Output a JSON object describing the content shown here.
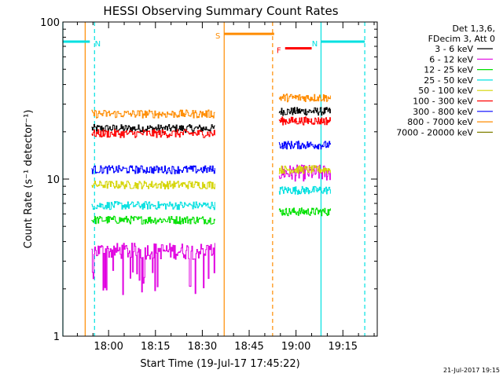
{
  "chart_data": {
    "type": "line",
    "title": "HESSI Observing Summary Count Rates",
    "xlabel": "Start Time (19-Jul-17 17:45:22)",
    "ylabel": "Count Rate (s⁻¹ detector⁻¹)",
    "yscale": "log",
    "ylim": [
      1,
      100
    ],
    "xlim": [
      "17:45:22",
      "19:26:00"
    ],
    "x_ticks": [
      "18:00",
      "18:15",
      "18:30",
      "18:45",
      "19:00",
      "19:15"
    ],
    "y_ticks": [
      "1",
      "10",
      "100"
    ],
    "grid": false,
    "legend_header": [
      "Det 1,3,6,",
      "FDecim 3, Att 0"
    ],
    "legend_position": "right",
    "segments": [
      {
        "start": "17:54:30",
        "end": "18:34:00"
      },
      {
        "start": "18:54:30",
        "end": "19:11:00"
      }
    ],
    "series": [
      {
        "name": "3 - 6 keV",
        "color": "#000000",
        "values": [
          21,
          27
        ]
      },
      {
        "name": "6 - 12 keV",
        "color": "#e000e0",
        "values": [
          3.5,
          11
        ]
      },
      {
        "name": "12 - 25 keV",
        "color": "#00e000",
        "values": [
          5.5,
          6.2
        ]
      },
      {
        "name": "25 - 50 keV",
        "color": "#00e0e0",
        "values": [
          6.8,
          8.5
        ]
      },
      {
        "name": "50 - 100 keV",
        "color": "#d4d400",
        "values": [
          9.2,
          11.5
        ]
      },
      {
        "name": "100 - 300 keV",
        "color": "#ff0000",
        "values": [
          19.5,
          23.5
        ]
      },
      {
        "name": "300 - 800 keV",
        "color": "#0000ff",
        "values": [
          11.5,
          16.5
        ]
      },
      {
        "name": "800 - 7000 keV",
        "color": "#ff8c00",
        "values": [
          26,
          33
        ]
      },
      {
        "name": "7000 - 20000 keV",
        "color": "#808000",
        "values": [
          null,
          null
        ]
      }
    ],
    "flags": [
      {
        "label": "N",
        "color": "#00e0e0",
        "start": "17:45:22",
        "end": "17:54:00",
        "level": 75
      },
      {
        "label": "N",
        "color": "#00e0e0",
        "start": "19:08:00",
        "end": "19:22:00",
        "level": 75
      },
      {
        "label": "S",
        "color": "#ff8c00",
        "start": "18:37:00",
        "end": "18:53:00",
        "level": 84
      },
      {
        "label": "F",
        "color": "#ff0000",
        "start": "18:56:30",
        "end": "19:05:00",
        "level": 68
      }
    ],
    "vertical_lines": [
      {
        "time": "17:45:22",
        "color": "#00e0e0",
        "style": "solid"
      },
      {
        "time": "17:52:30",
        "color": "#ff8c00",
        "style": "solid"
      },
      {
        "time": "17:55:30",
        "color": "#00e0e0",
        "style": "dashed"
      },
      {
        "time": "18:37:00",
        "color": "#ff8c00",
        "style": "solid"
      },
      {
        "time": "18:52:30",
        "color": "#ff8c00",
        "style": "dashed"
      },
      {
        "time": "19:08:00",
        "color": "#00e0e0",
        "style": "solid"
      },
      {
        "time": "19:22:00",
        "color": "#00e0e0",
        "style": "dashed"
      }
    ],
    "timestamp": "21-Jul-2017 19:15"
  }
}
